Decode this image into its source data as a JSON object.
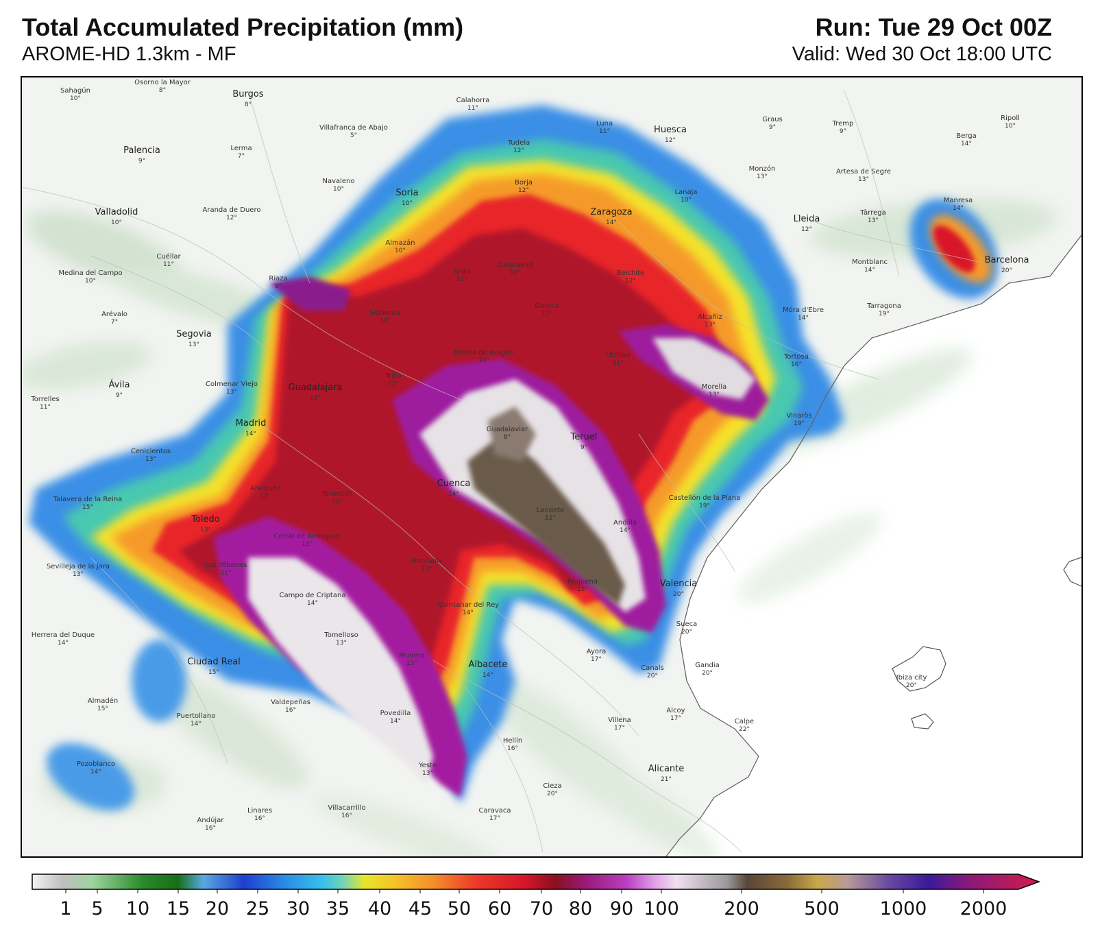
{
  "header": {
    "title": "Total Accumulated Precipitation (mm)",
    "model": "AROME-HD 1.3km - MF",
    "run": "Run: Tue 29 Oct 00Z",
    "valid": "Valid: Wed 30 Oct 18:00 UTC"
  },
  "colorbar": {
    "labels": [
      "1",
      "5",
      "10",
      "15",
      "20",
      "25",
      "30",
      "35",
      "40",
      "45",
      "50",
      "60",
      "70",
      "80",
      "90",
      "100",
      "200",
      "500",
      "1000",
      "2000"
    ]
  },
  "cities": [
    {
      "name": "Sahagún",
      "temp": "10°",
      "big": false
    },
    {
      "name": "Osorno la Mayor",
      "temp": "8°",
      "big": false
    },
    {
      "name": "Burgos",
      "temp": "8°",
      "big": true
    },
    {
      "name": "Calahorra",
      "temp": "11°",
      "big": false
    },
    {
      "name": "Palencia",
      "temp": "9°",
      "big": true
    },
    {
      "name": "Villafranca de Abajo",
      "temp": "5°",
      "big": false
    },
    {
      "name": "Lerma",
      "temp": "7°",
      "big": false
    },
    {
      "name": "Tudela",
      "temp": "12°",
      "big": false
    },
    {
      "name": "Luna",
      "temp": "11°",
      "big": false
    },
    {
      "name": "Huesca",
      "temp": "12°",
      "big": true
    },
    {
      "name": "Graus",
      "temp": "9°",
      "big": false
    },
    {
      "name": "Tremp",
      "temp": "9°",
      "big": false
    },
    {
      "name": "Ripoll",
      "temp": "10°",
      "big": false
    },
    {
      "name": "Berga",
      "temp": "14°",
      "big": false
    },
    {
      "name": "Navaleno",
      "temp": "10°",
      "big": false
    },
    {
      "name": "Soria",
      "temp": "10°",
      "big": true
    },
    {
      "name": "Borja",
      "temp": "12°",
      "big": false
    },
    {
      "name": "Monzón",
      "temp": "13°",
      "big": false
    },
    {
      "name": "Artesa de Segre",
      "temp": "13°",
      "big": false
    },
    {
      "name": "Valladolid",
      "temp": "10°",
      "big": true
    },
    {
      "name": "Aranda de Duero",
      "temp": "12°",
      "big": false
    },
    {
      "name": "Zaragoza",
      "temp": "14°",
      "big": true
    },
    {
      "name": "Lanaja",
      "temp": "10°",
      "big": false
    },
    {
      "name": "Lleida",
      "temp": "12°",
      "big": true
    },
    {
      "name": "Tàrrega",
      "temp": "13°",
      "big": false
    },
    {
      "name": "Manresa",
      "temp": "14°",
      "big": false
    },
    {
      "name": "Almazán",
      "temp": "10°",
      "big": false
    },
    {
      "name": "Cuéllar",
      "temp": "11°",
      "big": false
    },
    {
      "name": "Medina del Campo",
      "temp": "10°",
      "big": false
    },
    {
      "name": "Ariza",
      "temp": "11°",
      "big": false
    },
    {
      "name": "Calatayud",
      "temp": "12°",
      "big": false
    },
    {
      "name": "Belchite",
      "temp": "12°",
      "big": false
    },
    {
      "name": "Montblanc",
      "temp": "14°",
      "big": false
    },
    {
      "name": "Barcelona",
      "temp": "20°",
      "big": true
    },
    {
      "name": "Riaza",
      "temp": "9°",
      "big": false
    },
    {
      "name": "Daroca",
      "temp": "11°",
      "big": false
    },
    {
      "name": "Tarragona",
      "temp": "19°",
      "big": false
    },
    {
      "name": "Arévalo",
      "temp": "7°",
      "big": false
    },
    {
      "name": "Sigüenza",
      "temp": "10°",
      "big": false
    },
    {
      "name": "Alcañiz",
      "temp": "13°",
      "big": false
    },
    {
      "name": "Móra d'Ebre",
      "temp": "14°",
      "big": false
    },
    {
      "name": "Segovia",
      "temp": "13°",
      "big": true
    },
    {
      "name": "Molina de Aragón",
      "temp": "10°",
      "big": false
    },
    {
      "name": "Utrillas",
      "temp": "11°",
      "big": false
    },
    {
      "name": "Tortosa",
      "temp": "16°",
      "big": false
    },
    {
      "name": "Trillo",
      "temp": "12°",
      "big": false
    },
    {
      "name": "Colmenar Viejo",
      "temp": "13°",
      "big": false
    },
    {
      "name": "Guadalajara",
      "temp": "13°",
      "big": true
    },
    {
      "name": "Ávila",
      "temp": "9°",
      "big": true
    },
    {
      "name": "Morella",
      "temp": "13°",
      "big": false
    },
    {
      "name": "Torrelles",
      "temp": "11°",
      "big": false
    },
    {
      "name": "Vinaròs",
      "temp": "19°",
      "big": false
    },
    {
      "name": "Madrid",
      "temp": "14°",
      "big": true
    },
    {
      "name": "Guadalaviar",
      "temp": "8°",
      "big": false
    },
    {
      "name": "Teruel",
      "temp": "9°",
      "big": true
    },
    {
      "name": "Cenicientos",
      "temp": "13°",
      "big": false
    },
    {
      "name": "Cuenca",
      "temp": "14°",
      "big": true
    },
    {
      "name": "Aranjuez",
      "temp": "13°",
      "big": false
    },
    {
      "name": "Tarancón",
      "temp": "12°",
      "big": false
    },
    {
      "name": "Castellón de la Plana",
      "temp": "19°",
      "big": false
    },
    {
      "name": "Talavera de la Reina",
      "temp": "15°",
      "big": false
    },
    {
      "name": "Landete",
      "temp": "12°",
      "big": false
    },
    {
      "name": "Toledo",
      "temp": "13°",
      "big": true
    },
    {
      "name": "Andilla",
      "temp": "14°",
      "big": false
    },
    {
      "name": "Corral de Almaguer",
      "temp": "13°",
      "big": false
    },
    {
      "name": "Honrubia",
      "temp": "13°",
      "big": false
    },
    {
      "name": "Sevilleja de la Jara",
      "temp": "13°",
      "big": false
    },
    {
      "name": "Los Yébenes",
      "temp": "11°",
      "big": false
    },
    {
      "name": "Requena",
      "temp": "15°",
      "big": false
    },
    {
      "name": "Valencia",
      "temp": "20°",
      "big": true
    },
    {
      "name": "Campo de Criptana",
      "temp": "14°",
      "big": false
    },
    {
      "name": "Quintanar del Rey",
      "temp": "14°",
      "big": false
    },
    {
      "name": "Herrera del Duque",
      "temp": "14°",
      "big": false
    },
    {
      "name": "Tomelloso",
      "temp": "13°",
      "big": false
    },
    {
      "name": "Sueca",
      "temp": "20°",
      "big": false
    },
    {
      "name": "Munera",
      "temp": "13°",
      "big": false
    },
    {
      "name": "Albacete",
      "temp": "14°",
      "big": true
    },
    {
      "name": "Ayora",
      "temp": "17°",
      "big": false
    },
    {
      "name": "Ciudad Real",
      "temp": "15°",
      "big": true
    },
    {
      "name": "Canals",
      "temp": "20°",
      "big": false
    },
    {
      "name": "Gandia",
      "temp": "20°",
      "big": false
    },
    {
      "name": "Ibiza city",
      "temp": "20°",
      "big": false
    },
    {
      "name": "Almadén",
      "temp": "15°",
      "big": false
    },
    {
      "name": "Valdepeñas",
      "temp": "16°",
      "big": false
    },
    {
      "name": "Puertollano",
      "temp": "14°",
      "big": false
    },
    {
      "name": "Povedilla",
      "temp": "14°",
      "big": false
    },
    {
      "name": "Alcoy",
      "temp": "17°",
      "big": false
    },
    {
      "name": "Villena",
      "temp": "17°",
      "big": false
    },
    {
      "name": "Calpe",
      "temp": "22°",
      "big": false
    },
    {
      "name": "Hellín",
      "temp": "16°",
      "big": false
    },
    {
      "name": "Pozoblanco",
      "temp": "14°",
      "big": false
    },
    {
      "name": "Yeste",
      "temp": "13°",
      "big": false
    },
    {
      "name": "Alicante",
      "temp": "21°",
      "big": true
    },
    {
      "name": "Cieza",
      "temp": "20°",
      "big": false
    },
    {
      "name": "Linares",
      "temp": "16°",
      "big": false
    },
    {
      "name": "Villacarrillo",
      "temp": "16°",
      "big": false
    },
    {
      "name": "Caravaca",
      "temp": "17°",
      "big": false
    },
    {
      "name": "Andújar",
      "temp": "16°",
      "big": false
    }
  ]
}
